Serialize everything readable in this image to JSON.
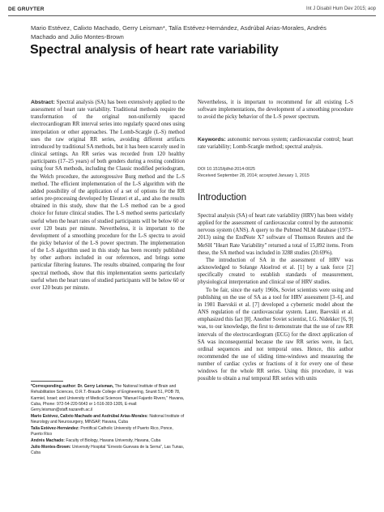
{
  "header": {
    "publisher": "DE GRUYTER",
    "journal": "Int J Disabil Hum Dev 2015; aop"
  },
  "authors": "Mario Estévez, Calixto Machado, Gerry Leisman*, Talía Estévez-Hernández, Asdrúbal Arias-Morales, Andrés Machado and Julio Montes-Brown",
  "title": "Spectral analysis of heart rate variability",
  "abstract": {
    "label": "Abstract:",
    "text": "Spectral analysis (SA) has been extensively applied to the assessment of heart rate variability. Traditional methods require the transformation of the original non-uniformly spaced electrocardiogram RR interval series into regularly spaced ones using interpolation or other approaches. The Lomb-Scargle (L-S) method uses the raw original RR series, avoiding different artifacts introduced by traditional SA methods, but it has been scarcely used in clinical settings. An RR series was recorded from 120 healthy participants (17–25 years) of both genders during a resting condition using four SA methods, including the Classic modified periodogram, the Welch procedure, the autoregressive Burg method and the L-S method. The efficient implementation of the L-S algorithm with the added possibility of the application of a set of options for the RR series pre-processing developed by Eleuteri et al., and also the results obtained in this study, show that the L-S method can be a good choice for future clinical studies. The L-S method seems particularly useful when the heart rates of studied participants will be below 60 or over 120 beats per minute. Nevertheless, it is important to the development of a smoothing procedure for the L-S spectra to avoid the picky behavior of the L-S power spectrum. The implementation of the L-S algorithm used in this study has been recently published by other authors included in our references, and brings some particular filtering features. The results obtained, comparing the four spectral methods, show that this implementation seems particularly useful when the heart rates of studied participants will be below 60 or over 120 beats per minute.",
    "continuation": "Nevertheless, it is important to recommend for all existing L-S software implementations, the development of a smoothing procedure to avoid the picky behavior of the L-S power spectrum."
  },
  "keywords": {
    "label": "Keywords:",
    "text": "autonomic nervous system; cardiovascular control; heart rate variability; Lomb-Scargle method; spectral analysis."
  },
  "doi": "DOI 10.1515/ijdhd-2014-0025",
  "received": "Received September 28, 2014; accepted January 1, 2015",
  "footnotes": [
    {
      "label": "*Corresponding author: Dr. Gerry Leisman,",
      "text": "The National Institute of Brain and Rehabilitation Sciences, O.R.T.-Braude College of Engineering, Snunit 51, POB 78, Karmiel, Israel; and University of Medical Sciences \"Manuel Fajardo Rivero,\" Havana, Cuba, Phone: 972-54-220-5643 or 1-516-303-1305, E-mail: Gerry.leisman@staff.nazareth.ac.il"
    },
    {
      "label": "Mario Estévez, Calixto Machado and Asdrúbal Arias-Morales:",
      "text": "National Institute of Neurology and Neurosurgery, MINSAP, Havana, Cuba"
    },
    {
      "label": "Talía Estévez-Hernández:",
      "text": "Pontifical Catholic University of Puerto Rico, Ponce, Puerto Rico"
    },
    {
      "label": "Andrés Machado:",
      "text": "Faculty of Biology, Havana University, Havana, Cuba"
    },
    {
      "label": "Julio Montes-Brown:",
      "text": "University Hospital \"Ernesto Guevara de la Serna\", Las Tunas, Cuba"
    }
  ],
  "introduction": {
    "heading": "Introduction",
    "paragraphs": [
      "Spectral analysis (SA) of heart rate variability (HRV) has been widely applied for the assessment of cardiovascular control by the autonomic nervous system (ANS). A query to the Pubmed NLM database (1973–2013) using the EndNote X7 software of Thomson Reuters and the MeSH \"Heart Rate Variability\" returned a total of 15,892 items. From these, the SA method was included in 3288 studies (20.69%).",
      "The introduction of SA in the assessment of HRV was acknowledged to Solange Akselrod et al. [1] by a task force [2] specifically created to establish standards of measurement, physiological interpretation and clinical use of HRV studies.",
      "To be fair, since the early 1960s, Soviet scientists were using and publishing on the use of SA as a tool for HRV assessment [3–6], and in 1981 Baevskii et al. [7] developed a cybernetic model about the ANS regulation of the cardiovascular system. Later, Baevskii et al. emphasized this fact [8]. Another Soviet scientist, I.G. Nidekker [6, 9] was, to our knowledge, the first to demonstrate that the use of raw RR intervals of the electrocardiogram (ECG) for the direct application of SA was inconsequential because the raw RR series were, in fact, ordinal sequences and not temporal ones. Hence, this author recommended the use of sliding time-windows and measuring the number of cardiac cycles or fractions of it for every one of these windows for the whole RR series. Using this procedure, it was possible to obtain a real temporal RR series with units"
    ]
  }
}
